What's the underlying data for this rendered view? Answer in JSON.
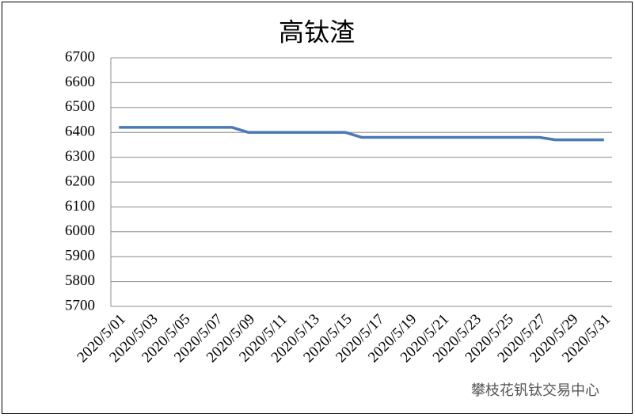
{
  "chart_data": {
    "type": "line",
    "title": "高钛渣",
    "categories": [
      "2020/5/01",
      null,
      "2020/5/03",
      null,
      "2020/5/05",
      null,
      "2020/5/07",
      null,
      "2020/5/09",
      null,
      "2020/5/11",
      null,
      "2020/5/13",
      null,
      "2020/5/15",
      null,
      "2020/5/17",
      null,
      "2020/5/19",
      null,
      "2020/5/21",
      null,
      "2020/5/23",
      null,
      "2020/5/25",
      null,
      "2020/5/27",
      null,
      "2020/5/29",
      null,
      "2020/5/31"
    ],
    "series": [
      {
        "name": "高钛渣",
        "color": "#4a7ab5",
        "values": [
          6420,
          6420,
          6420,
          6420,
          6420,
          6420,
          6420,
          6420,
          6400,
          6400,
          6400,
          6400,
          6400,
          6400,
          6400,
          6380,
          6380,
          6380,
          6380,
          6380,
          6380,
          6380,
          6380,
          6380,
          6380,
          6380,
          6380,
          6370,
          6370,
          6370,
          6370
        ]
      }
    ],
    "ylim": [
      5700,
      6700
    ],
    "yticks": [
      5700,
      5800,
      5900,
      6000,
      6100,
      6200,
      6300,
      6400,
      6500,
      6600,
      6700
    ],
    "grid": true,
    "watermark": "攀枝花钒钛交易中心"
  }
}
